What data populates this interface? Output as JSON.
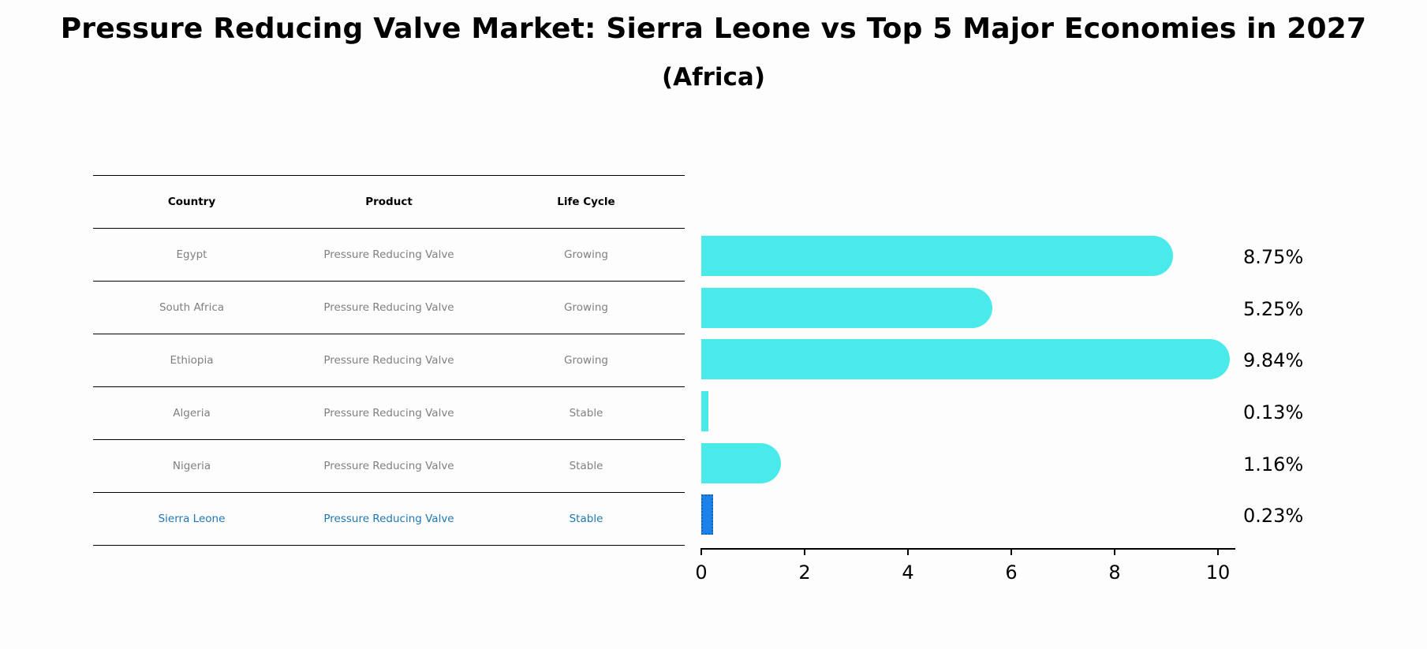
{
  "title": "Pressure Reducing Valve Market: Sierra Leone vs Top 5 Major Economies in 2027",
  "subtitle": "(Africa)",
  "table": {
    "headers": [
      "Country",
      "Product",
      "Life Cycle"
    ],
    "rows": [
      {
        "country": "Egypt",
        "product": "Pressure Reducing Valve",
        "life_cycle": "Growing"
      },
      {
        "country": "South Africa",
        "product": "Pressure Reducing Valve",
        "life_cycle": "Growing"
      },
      {
        "country": "Ethiopia",
        "product": "Pressure Reducing Valve",
        "life_cycle": "Growing"
      },
      {
        "country": "Algeria",
        "product": "Pressure Reducing Valve",
        "life_cycle": "Stable"
      },
      {
        "country": "Nigeria",
        "product": "Pressure Reducing Valve",
        "life_cycle": "Stable"
      },
      {
        "country": "Sierra Leone",
        "product": "Pressure Reducing Valve",
        "life_cycle": "Stable"
      }
    ]
  },
  "colors": {
    "bar": "#4aeaea",
    "highlight_bar": "#1a82e8",
    "highlight_text": "#1f77b4",
    "row_text": "#808080"
  },
  "chart_data": {
    "type": "bar",
    "orientation": "horizontal",
    "title": "Pressure Reducing Valve Market: Sierra Leone vs Top 5 Major Economies in 2027",
    "subtitle": "(Africa)",
    "categories": [
      "Egypt",
      "South Africa",
      "Ethiopia",
      "Algeria",
      "Nigeria",
      "Sierra Leone"
    ],
    "values": [
      8.75,
      5.25,
      9.84,
      0.13,
      1.16,
      0.23
    ],
    "value_labels": [
      "8.75%",
      "5.25%",
      "9.84%",
      "0.13%",
      "1.16%",
      "0.23%"
    ],
    "highlight": "Sierra Leone",
    "xlabel": "",
    "ylabel": "",
    "xlim": [
      0,
      10.3
    ],
    "xticks": [
      0,
      2,
      4,
      6,
      8,
      10
    ],
    "grid": false
  }
}
